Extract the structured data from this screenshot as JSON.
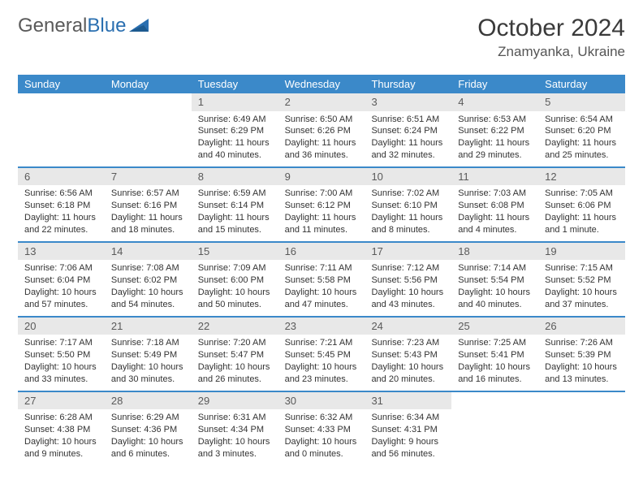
{
  "logo": {
    "text_general": "General",
    "text_blue": "Blue"
  },
  "title": {
    "month_year": "October 2024",
    "location": "Znamyanka, Ukraine"
  },
  "colors": {
    "header_bg": "#3b89c9",
    "daynum_bg": "#e8e8e8",
    "week_divider": "#3b89c9",
    "text": "#333333",
    "logo_gray": "#5a5a5a",
    "logo_blue": "#2a6fb0"
  },
  "typography": {
    "title_fontsize": 30,
    "location_fontsize": 17,
    "dow_fontsize": 13,
    "daynum_fontsize": 13,
    "body_fontsize": 11
  },
  "dow": [
    "Sunday",
    "Monday",
    "Tuesday",
    "Wednesday",
    "Thursday",
    "Friday",
    "Saturday"
  ],
  "weeks": [
    [
      null,
      null,
      {
        "n": "1",
        "sunrise": "6:49 AM",
        "sunset": "6:29 PM",
        "daylight": "11 hours and 40 minutes."
      },
      {
        "n": "2",
        "sunrise": "6:50 AM",
        "sunset": "6:26 PM",
        "daylight": "11 hours and 36 minutes."
      },
      {
        "n": "3",
        "sunrise": "6:51 AM",
        "sunset": "6:24 PM",
        "daylight": "11 hours and 32 minutes."
      },
      {
        "n": "4",
        "sunrise": "6:53 AM",
        "sunset": "6:22 PM",
        "daylight": "11 hours and 29 minutes."
      },
      {
        "n": "5",
        "sunrise": "6:54 AM",
        "sunset": "6:20 PM",
        "daylight": "11 hours and 25 minutes."
      }
    ],
    [
      {
        "n": "6",
        "sunrise": "6:56 AM",
        "sunset": "6:18 PM",
        "daylight": "11 hours and 22 minutes."
      },
      {
        "n": "7",
        "sunrise": "6:57 AM",
        "sunset": "6:16 PM",
        "daylight": "11 hours and 18 minutes."
      },
      {
        "n": "8",
        "sunrise": "6:59 AM",
        "sunset": "6:14 PM",
        "daylight": "11 hours and 15 minutes."
      },
      {
        "n": "9",
        "sunrise": "7:00 AM",
        "sunset": "6:12 PM",
        "daylight": "11 hours and 11 minutes."
      },
      {
        "n": "10",
        "sunrise": "7:02 AM",
        "sunset": "6:10 PM",
        "daylight": "11 hours and 8 minutes."
      },
      {
        "n": "11",
        "sunrise": "7:03 AM",
        "sunset": "6:08 PM",
        "daylight": "11 hours and 4 minutes."
      },
      {
        "n": "12",
        "sunrise": "7:05 AM",
        "sunset": "6:06 PM",
        "daylight": "11 hours and 1 minute."
      }
    ],
    [
      {
        "n": "13",
        "sunrise": "7:06 AM",
        "sunset": "6:04 PM",
        "daylight": "10 hours and 57 minutes."
      },
      {
        "n": "14",
        "sunrise": "7:08 AM",
        "sunset": "6:02 PM",
        "daylight": "10 hours and 54 minutes."
      },
      {
        "n": "15",
        "sunrise": "7:09 AM",
        "sunset": "6:00 PM",
        "daylight": "10 hours and 50 minutes."
      },
      {
        "n": "16",
        "sunrise": "7:11 AM",
        "sunset": "5:58 PM",
        "daylight": "10 hours and 47 minutes."
      },
      {
        "n": "17",
        "sunrise": "7:12 AM",
        "sunset": "5:56 PM",
        "daylight": "10 hours and 43 minutes."
      },
      {
        "n": "18",
        "sunrise": "7:14 AM",
        "sunset": "5:54 PM",
        "daylight": "10 hours and 40 minutes."
      },
      {
        "n": "19",
        "sunrise": "7:15 AM",
        "sunset": "5:52 PM",
        "daylight": "10 hours and 37 minutes."
      }
    ],
    [
      {
        "n": "20",
        "sunrise": "7:17 AM",
        "sunset": "5:50 PM",
        "daylight": "10 hours and 33 minutes."
      },
      {
        "n": "21",
        "sunrise": "7:18 AM",
        "sunset": "5:49 PM",
        "daylight": "10 hours and 30 minutes."
      },
      {
        "n": "22",
        "sunrise": "7:20 AM",
        "sunset": "5:47 PM",
        "daylight": "10 hours and 26 minutes."
      },
      {
        "n": "23",
        "sunrise": "7:21 AM",
        "sunset": "5:45 PM",
        "daylight": "10 hours and 23 minutes."
      },
      {
        "n": "24",
        "sunrise": "7:23 AM",
        "sunset": "5:43 PM",
        "daylight": "10 hours and 20 minutes."
      },
      {
        "n": "25",
        "sunrise": "7:25 AM",
        "sunset": "5:41 PM",
        "daylight": "10 hours and 16 minutes."
      },
      {
        "n": "26",
        "sunrise": "7:26 AM",
        "sunset": "5:39 PM",
        "daylight": "10 hours and 13 minutes."
      }
    ],
    [
      {
        "n": "27",
        "sunrise": "6:28 AM",
        "sunset": "4:38 PM",
        "daylight": "10 hours and 9 minutes."
      },
      {
        "n": "28",
        "sunrise": "6:29 AM",
        "sunset": "4:36 PM",
        "daylight": "10 hours and 6 minutes."
      },
      {
        "n": "29",
        "sunrise": "6:31 AM",
        "sunset": "4:34 PM",
        "daylight": "10 hours and 3 minutes."
      },
      {
        "n": "30",
        "sunrise": "6:32 AM",
        "sunset": "4:33 PM",
        "daylight": "10 hours and 0 minutes."
      },
      {
        "n": "31",
        "sunrise": "6:34 AM",
        "sunset": "4:31 PM",
        "daylight": "9 hours and 56 minutes."
      },
      null,
      null
    ]
  ]
}
